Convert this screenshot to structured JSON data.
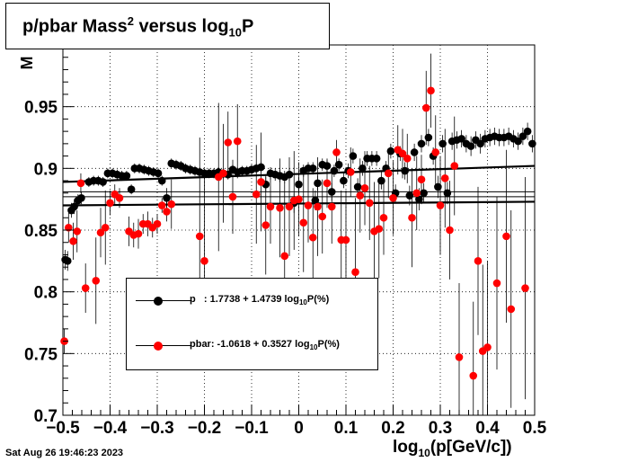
{
  "page": {
    "title_main": "p/pbar Mass",
    "title_sup": "2",
    "title_mid": " versus log",
    "title_sub": "10",
    "title_end": "P",
    "datestamp": "Sat Aug 26 19:46:23 2023",
    "xaxis_title_main": "log",
    "xaxis_title_sub": "10",
    "xaxis_title_end": "(p[GeV/c])",
    "yaxis_title_fragment": "M"
  },
  "legend": {
    "entries": [
      {
        "pre": "p   : 1.7738 + 1.4739 log",
        "sub": "10",
        "post": "P(%)",
        "color": "#000000"
      },
      {
        "pre": "pbar: -1.0618 + 0.3527 log",
        "sub": "10",
        "post": "P(%)",
        "color": "#ff0000"
      }
    ]
  },
  "chart_data": {
    "type": "scatter",
    "xlim": [
      -0.5,
      0.5
    ],
    "ylim": [
      0.7,
      1.0
    ],
    "grid": true,
    "legend_position": "bottom-left",
    "xticks": [
      "−0.5",
      "−0.4",
      "−0.3",
      "−0.2",
      "−0.1",
      "0",
      "0.1",
      "0.2",
      "0.3",
      "0.4",
      "0.5"
    ],
    "xtick_values": [
      -0.5,
      -0.4,
      -0.3,
      -0.2,
      -0.1,
      0,
      0.1,
      0.2,
      0.3,
      0.4,
      0.5
    ],
    "yticks": [
      "0.7",
      "0.75",
      "0.8",
      "0.85",
      "0.9",
      "0.95"
    ],
    "ytick_values": [
      0.7,
      0.75,
      0.8,
      0.85,
      0.9,
      0.95
    ],
    "reference_lines": [
      0.877,
      0.881
    ],
    "series": [
      {
        "color": "#000000",
        "fit": [
          [
            -0.5,
            0.889
          ],
          [
            0.5,
            0.902
          ]
        ],
        "points": [
          [
            -0.495,
            0.826,
            0.008
          ],
          [
            -0.49,
            0.825,
            0.008
          ],
          [
            -0.482,
            0.866,
            0.006
          ],
          [
            -0.476,
            0.869,
            0.006
          ],
          [
            -0.468,
            0.874,
            0.005
          ],
          [
            -0.461,
            0.876,
            0.005
          ],
          [
            -0.445,
            0.889,
            0.004
          ],
          [
            -0.435,
            0.89,
            0.004
          ],
          [
            -0.425,
            0.89,
            0.004
          ],
          [
            -0.415,
            0.889,
            0.004
          ],
          [
            -0.405,
            0.896,
            0.004
          ],
          [
            -0.395,
            0.896,
            0.004
          ],
          [
            -0.385,
            0.895,
            0.004
          ],
          [
            -0.375,
            0.894,
            0.004
          ],
          [
            -0.365,
            0.894,
            0.004
          ],
          [
            -0.355,
            0.883,
            0.004
          ],
          [
            -0.348,
            0.9,
            0.004
          ],
          [
            -0.338,
            0.9,
            0.004
          ],
          [
            -0.328,
            0.899,
            0.004
          ],
          [
            -0.318,
            0.898,
            0.004
          ],
          [
            -0.308,
            0.897,
            0.004
          ],
          [
            -0.298,
            0.896,
            0.004
          ],
          [
            -0.29,
            0.89,
            0.004
          ],
          [
            -0.28,
            0.876,
            0.008
          ],
          [
            -0.27,
            0.904,
            0.004
          ],
          [
            -0.26,
            0.903,
            0.004
          ],
          [
            -0.25,
            0.902,
            0.004
          ],
          [
            -0.24,
            0.9,
            0.004
          ],
          [
            -0.23,
            0.899,
            0.004
          ],
          [
            -0.22,
            0.898,
            0.004
          ],
          [
            -0.21,
            0.897,
            0.004
          ],
          [
            -0.2,
            0.896,
            0.004
          ],
          [
            -0.19,
            0.896,
            0.004
          ],
          [
            -0.18,
            0.896,
            0.004
          ],
          [
            -0.17,
            0.897,
            0.004
          ],
          [
            -0.16,
            0.896,
            0.004
          ],
          [
            -0.15,
            0.895,
            0.004
          ],
          [
            -0.14,
            0.899,
            0.004
          ],
          [
            -0.13,
            0.897,
            0.004
          ],
          [
            -0.12,
            0.898,
            0.004
          ],
          [
            -0.11,
            0.898,
            0.004
          ],
          [
            -0.1,
            0.899,
            0.004
          ],
          [
            -0.09,
            0.9,
            0.004
          ],
          [
            -0.08,
            0.901,
            0.004
          ],
          [
            -0.07,
            0.887,
            0.006
          ],
          [
            -0.06,
            0.896,
            0.005
          ],
          [
            -0.05,
            0.895,
            0.005
          ],
          [
            -0.04,
            0.894,
            0.005
          ],
          [
            -0.03,
            0.893,
            0.005
          ],
          [
            -0.02,
            0.895,
            0.005
          ],
          [
            -0.01,
            0.872,
            0.008
          ],
          [
            0.0,
            0.887,
            0.006
          ],
          [
            0.01,
            0.898,
            0.005
          ],
          [
            0.02,
            0.9,
            0.005
          ],
          [
            0.03,
            0.9,
            0.005
          ],
          [
            0.035,
            0.874,
            0.008
          ],
          [
            0.04,
            0.888,
            0.006
          ],
          [
            0.05,
            0.903,
            0.005
          ],
          [
            0.06,
            0.902,
            0.005
          ],
          [
            0.07,
            0.881,
            0.007
          ],
          [
            0.075,
            0.898,
            0.005
          ],
          [
            0.085,
            0.903,
            0.005
          ],
          [
            0.095,
            0.89,
            0.006
          ],
          [
            0.105,
            0.898,
            0.006
          ],
          [
            0.115,
            0.91,
            0.006
          ],
          [
            0.125,
            0.885,
            0.007
          ],
          [
            0.135,
            0.9,
            0.006
          ],
          [
            0.145,
            0.908,
            0.006
          ],
          [
            0.155,
            0.908,
            0.006
          ],
          [
            0.165,
            0.908,
            0.006
          ],
          [
            0.175,
            0.89,
            0.007
          ],
          [
            0.185,
            0.9,
            0.006
          ],
          [
            0.195,
            0.914,
            0.006
          ],
          [
            0.205,
            0.88,
            0.007
          ],
          [
            0.215,
            0.912,
            0.006
          ],
          [
            0.225,
            0.898,
            0.007
          ],
          [
            0.235,
            0.878,
            0.008
          ],
          [
            0.245,
            0.913,
            0.007
          ],
          [
            0.255,
            0.875,
            0.009
          ],
          [
            0.26,
            0.92,
            0.007
          ],
          [
            0.265,
            0.88,
            0.008
          ],
          [
            0.275,
            0.925,
            0.007
          ],
          [
            0.285,
            0.91,
            0.007
          ],
          [
            0.295,
            0.885,
            0.009
          ],
          [
            0.305,
            0.92,
            0.007
          ],
          [
            0.315,
            0.88,
            0.009
          ],
          [
            0.325,
            0.922,
            0.007
          ],
          [
            0.335,
            0.923,
            0.007
          ],
          [
            0.345,
            0.924,
            0.007
          ],
          [
            0.355,
            0.92,
            0.007
          ],
          [
            0.365,
            0.918,
            0.008
          ],
          [
            0.375,
            0.923,
            0.007
          ],
          [
            0.385,
            0.92,
            0.008
          ],
          [
            0.395,
            0.924,
            0.007
          ],
          [
            0.405,
            0.925,
            0.007
          ],
          [
            0.415,
            0.926,
            0.007
          ],
          [
            0.425,
            0.925,
            0.007
          ],
          [
            0.435,
            0.925,
            0.007
          ],
          [
            0.445,
            0.926,
            0.007
          ],
          [
            0.455,
            0.924,
            0.007
          ],
          [
            0.465,
            0.922,
            0.007
          ],
          [
            0.475,
            0.926,
            0.007
          ],
          [
            0.485,
            0.93,
            0.007
          ],
          [
            0.495,
            0.92,
            0.007
          ]
        ]
      },
      {
        "color": "#ff0000",
        "fit": [
          [
            -0.5,
            0.87
          ],
          [
            0.5,
            0.873
          ]
        ],
        "points": [
          [
            -0.497,
            0.76,
            0.01
          ],
          [
            -0.488,
            0.852,
            0.012
          ],
          [
            -0.478,
            0.841,
            0.015
          ],
          [
            -0.47,
            0.849,
            0.017
          ],
          [
            -0.462,
            0.888,
            0.008
          ],
          [
            -0.452,
            0.803,
            0.02
          ],
          [
            -0.43,
            0.809,
            0.035
          ],
          [
            -0.42,
            0.848,
            0.02
          ],
          [
            -0.41,
            0.852,
            0.03
          ],
          [
            -0.4,
            0.872,
            0.01
          ],
          [
            -0.39,
            0.879,
            0.008
          ],
          [
            -0.38,
            0.876,
            0.008
          ],
          [
            -0.36,
            0.849,
            0.012
          ],
          [
            -0.35,
            0.846,
            0.01
          ],
          [
            -0.34,
            0.847,
            0.012
          ],
          [
            -0.33,
            0.855,
            0.008
          ],
          [
            -0.32,
            0.855,
            0.01
          ],
          [
            -0.31,
            0.852,
            0.008
          ],
          [
            -0.3,
            0.855,
            0.008
          ],
          [
            -0.29,
            0.87,
            0.006
          ],
          [
            -0.28,
            0.865,
            0.008
          ],
          [
            -0.27,
            0.871,
            0.02
          ],
          [
            -0.21,
            0.845,
            0.08
          ],
          [
            -0.2,
            0.825,
            0.07
          ],
          [
            -0.17,
            0.893,
            0.06
          ],
          [
            -0.16,
            0.896,
            0.04
          ],
          [
            -0.15,
            0.921,
            0.025
          ],
          [
            -0.14,
            0.877,
            0.03
          ],
          [
            -0.13,
            0.922,
            0.03
          ],
          [
            -0.09,
            0.879,
            0.04
          ],
          [
            -0.08,
            0.889,
            0.04
          ],
          [
            -0.07,
            0.854,
            0.04
          ],
          [
            -0.06,
            0.869,
            0.03
          ],
          [
            -0.04,
            0.868,
            0.04
          ],
          [
            -0.03,
            0.829,
            0.06
          ],
          [
            -0.02,
            0.869,
            0.04
          ],
          [
            -0.01,
            0.874,
            0.04
          ],
          [
            0.0,
            0.875,
            0.03
          ],
          [
            0.01,
            0.856,
            0.04
          ],
          [
            0.02,
            0.87,
            0.03
          ],
          [
            0.03,
            0.844,
            0.04
          ],
          [
            0.04,
            0.869,
            0.04
          ],
          [
            0.05,
            0.861,
            0.03
          ],
          [
            0.06,
            0.888,
            0.02
          ],
          [
            0.07,
            0.869,
            0.03
          ],
          [
            0.08,
            0.913,
            0.01
          ],
          [
            0.09,
            0.842,
            0.04
          ],
          [
            0.1,
            0.842,
            0.04
          ],
          [
            0.11,
            0.897,
            0.02
          ],
          [
            0.12,
            0.816,
            0.06
          ],
          [
            0.13,
            0.878,
            0.03
          ],
          [
            0.14,
            0.884,
            0.03
          ],
          [
            0.15,
            0.872,
            0.03
          ],
          [
            0.16,
            0.849,
            0.04
          ],
          [
            0.17,
            0.851,
            0.04
          ],
          [
            0.18,
            0.86,
            0.03
          ],
          [
            0.19,
            0.896,
            0.02
          ],
          [
            0.2,
            0.876,
            0.03
          ],
          [
            0.21,
            0.915,
            0.02
          ],
          [
            0.22,
            0.912,
            0.02
          ],
          [
            0.23,
            0.908,
            0.02
          ],
          [
            0.24,
            0.86,
            0.04
          ],
          [
            0.25,
            0.88,
            0.03
          ],
          [
            0.26,
            0.891,
            0.02
          ],
          [
            0.27,
            0.949,
            0.03
          ],
          [
            0.28,
            0.963,
            0.03
          ],
          [
            0.29,
            0.913,
            0.03
          ],
          [
            0.3,
            0.87,
            0.04
          ],
          [
            0.31,
            0.892,
            0.04
          ],
          [
            0.32,
            0.85,
            0.04
          ],
          [
            0.33,
            0.902,
            0.04
          ],
          [
            0.34,
            0.747,
            0.06
          ],
          [
            0.37,
            0.732,
            0.06
          ],
          [
            0.38,
            0.825,
            0.06
          ],
          [
            0.39,
            0.752,
            0.07
          ],
          [
            0.4,
            0.755,
            0.07
          ],
          [
            0.42,
            0.807,
            0.07
          ],
          [
            0.44,
            0.845,
            0.07
          ],
          [
            0.45,
            0.786,
            0.08
          ],
          [
            0.48,
            0.803,
            0.09
          ]
        ]
      }
    ]
  }
}
